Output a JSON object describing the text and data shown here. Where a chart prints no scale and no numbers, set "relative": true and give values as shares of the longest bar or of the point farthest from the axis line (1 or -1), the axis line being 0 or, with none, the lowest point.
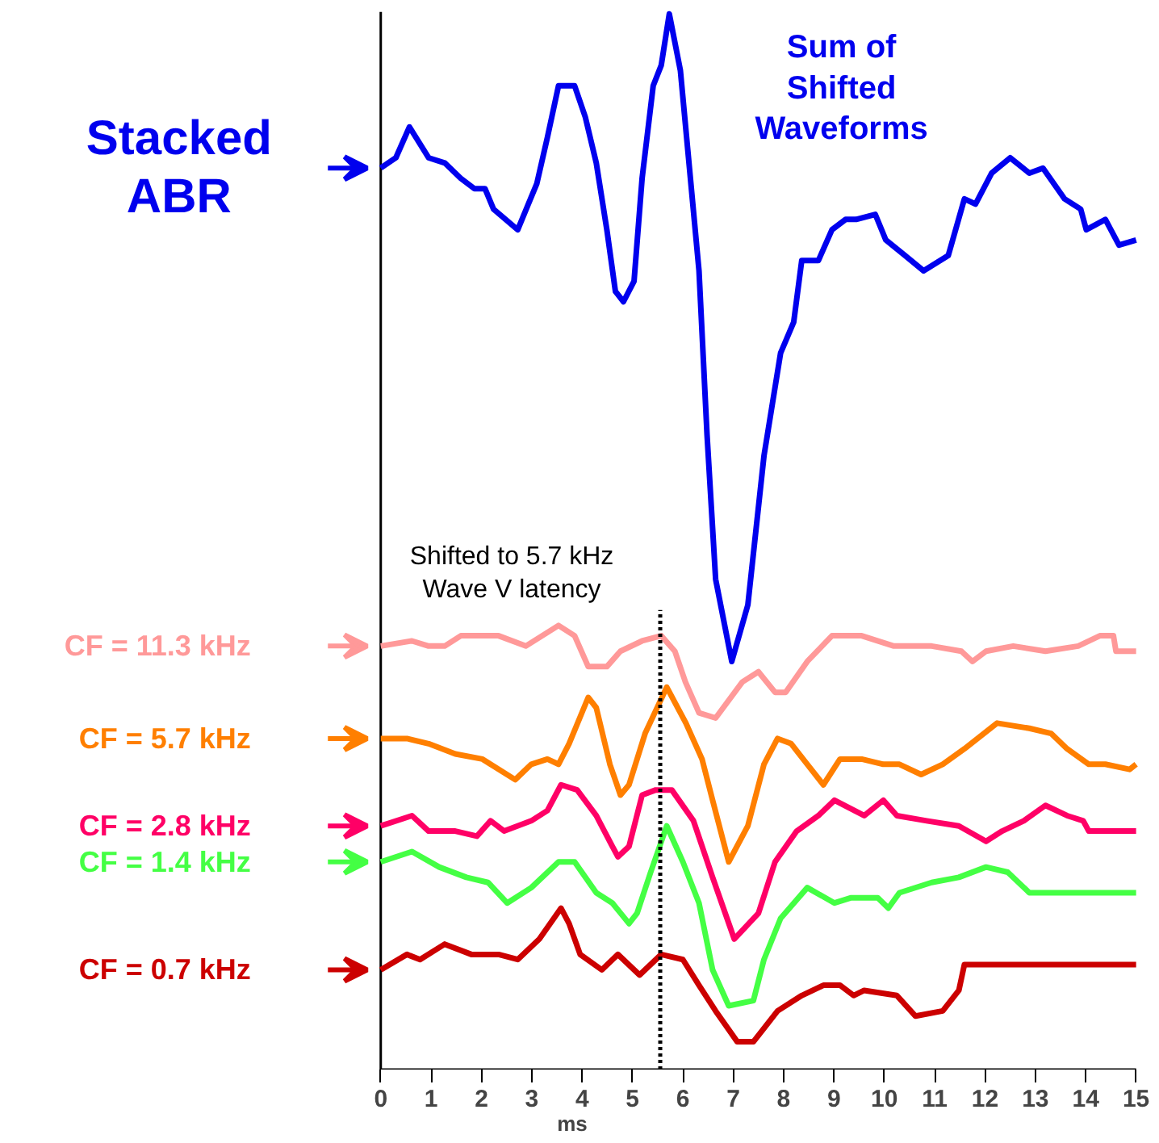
{
  "chart_data": {
    "type": "line",
    "relative": true,
    "xlabel": "ms",
    "xlim": [
      0,
      15
    ],
    "xticks": [
      0,
      1,
      2,
      3,
      4,
      5,
      6,
      7,
      8,
      9,
      10,
      11,
      12,
      13,
      14,
      15
    ],
    "grid": false,
    "legend": "left",
    "series": [
      {
        "name": "Stacked\nABR",
        "color": "#0000ee",
        "x": [
          0,
          0.3,
          0.57,
          0.95,
          1.27,
          1.59,
          1.86,
          2.07,
          2.24,
          2.72,
          3.1,
          3.31,
          3.53,
          3.85,
          4.06,
          4.28,
          4.49,
          4.66,
          4.82,
          5.03,
          5.19,
          5.41,
          5.57,
          5.73,
          5.95,
          6.32,
          6.48,
          6.65,
          6.97,
          7.29,
          7.61,
          7.94,
          8.2,
          8.36,
          8.69,
          8.96,
          9.23,
          9.44,
          9.82,
          10.03,
          10.41,
          10.78,
          11.27,
          11.59,
          11.81,
          12.13,
          12.5,
          12.88,
          13.15,
          13.58,
          13.9,
          14.01,
          14.39,
          14.66,
          15
        ],
        "values": [
          0.85,
          0.86,
          0.89,
          0.86,
          0.855,
          0.84,
          0.83,
          0.83,
          0.81,
          0.79,
          0.835,
          0.88,
          0.93,
          0.93,
          0.9,
          0.855,
          0.79,
          0.73,
          0.72,
          0.74,
          0.84,
          0.93,
          0.95,
          1.0,
          0.945,
          0.75,
          0.59,
          0.45,
          0.37,
          0.425,
          0.57,
          0.67,
          0.7,
          0.76,
          0.76,
          0.79,
          0.8,
          0.8,
          0.805,
          0.78,
          0.765,
          0.75,
          0.765,
          0.82,
          0.815,
          0.845,
          0.86,
          0.845,
          0.85,
          0.82,
          0.81,
          0.79,
          0.8,
          0.775,
          0.78
        ]
      },
      {
        "name": "CF = 11.3 kHz",
        "color": "#ff9999",
        "x": [
          0,
          0.62,
          0.95,
          1.27,
          1.59,
          2.34,
          2.88,
          3.53,
          3.85,
          4.12,
          4.49,
          4.76,
          5.19,
          5.57,
          5.84,
          6.05,
          6.32,
          6.65,
          7.18,
          7.5,
          7.83,
          8.04,
          8.47,
          8.96,
          9.55,
          10.19,
          10.94,
          11.53,
          11.75,
          12.02,
          12.56,
          13.2,
          13.85,
          14.28,
          14.55,
          14.6,
          15
        ],
        "values": [
          0.385,
          0.39,
          0.385,
          0.385,
          0.395,
          0.395,
          0.385,
          0.405,
          0.395,
          0.365,
          0.365,
          0.38,
          0.39,
          0.395,
          0.38,
          0.35,
          0.32,
          0.315,
          0.35,
          0.36,
          0.34,
          0.34,
          0.37,
          0.395,
          0.395,
          0.385,
          0.385,
          0.38,
          0.37,
          0.38,
          0.385,
          0.38,
          0.385,
          0.395,
          0.395,
          0.38,
          0.38
        ]
      },
      {
        "name": "CF = 5.7 kHz",
        "color": "#ff7f00",
        "x": [
          0,
          0.52,
          0.95,
          1.48,
          2.02,
          2.67,
          2.99,
          3.31,
          3.53,
          3.74,
          4.12,
          4.28,
          4.55,
          4.76,
          4.93,
          5.25,
          5.68,
          6.06,
          6.38,
          6.59,
          6.91,
          7.29,
          7.61,
          7.88,
          8.15,
          8.47,
          8.79,
          9.12,
          9.55,
          9.98,
          10.3,
          10.73,
          11.16,
          11.59,
          12.24,
          12.88,
          13.31,
          13.63,
          14.06,
          14.39,
          14.87,
          15
        ],
        "values": [
          0.295,
          0.295,
          0.29,
          0.28,
          0.275,
          0.255,
          0.27,
          0.275,
          0.27,
          0.29,
          0.335,
          0.325,
          0.27,
          0.24,
          0.25,
          0.3,
          0.345,
          0.31,
          0.275,
          0.235,
          0.175,
          0.21,
          0.27,
          0.295,
          0.29,
          0.27,
          0.25,
          0.275,
          0.275,
          0.27,
          0.27,
          0.26,
          0.27,
          0.285,
          0.31,
          0.305,
          0.3,
          0.285,
          0.27,
          0.27,
          0.265,
          0.27
        ]
      },
      {
        "name": "CF = 2.8 kHz",
        "color": "#ff0066",
        "x": [
          0,
          0.62,
          0.95,
          1.48,
          1.91,
          2.18,
          2.45,
          2.99,
          3.31,
          3.58,
          3.9,
          4.28,
          4.6,
          4.71,
          4.93,
          5.19,
          5.46,
          5.78,
          6.21,
          6.59,
          7.02,
          7.5,
          7.83,
          8.26,
          8.69,
          9.01,
          9.6,
          9.98,
          10.25,
          10.84,
          11.48,
          12.02,
          12.34,
          12.77,
          13.2,
          13.63,
          13.95,
          14.06,
          15
        ],
        "values": [
          0.21,
          0.22,
          0.205,
          0.205,
          0.2,
          0.215,
          0.205,
          0.215,
          0.225,
          0.25,
          0.245,
          0.22,
          0.19,
          0.18,
          0.19,
          0.24,
          0.245,
          0.245,
          0.215,
          0.16,
          0.1,
          0.125,
          0.175,
          0.205,
          0.22,
          0.235,
          0.22,
          0.235,
          0.22,
          0.215,
          0.21,
          0.195,
          0.205,
          0.215,
          0.23,
          0.22,
          0.215,
          0.205,
          0.205
        ]
      },
      {
        "name": "CF = 1.4 kHz",
        "color": "#44ff44",
        "x": [
          0,
          0.62,
          1.16,
          1.7,
          2.13,
          2.51,
          2.99,
          3.53,
          3.85,
          4.28,
          4.6,
          4.93,
          5.09,
          5.36,
          5.68,
          6.0,
          6.32,
          6.59,
          6.91,
          7.4,
          7.61,
          7.94,
          8.47,
          9.01,
          9.33,
          9.87,
          10.08,
          10.3,
          10.94,
          11.48,
          12.02,
          12.45,
          12.88,
          15
        ],
        "values": [
          0.175,
          0.185,
          0.17,
          0.16,
          0.155,
          0.135,
          0.15,
          0.175,
          0.175,
          0.145,
          0.135,
          0.115,
          0.125,
          0.165,
          0.21,
          0.175,
          0.135,
          0.07,
          0.035,
          0.04,
          0.08,
          0.12,
          0.15,
          0.135,
          0.14,
          0.14,
          0.13,
          0.145,
          0.155,
          0.16,
          0.17,
          0.165,
          0.145,
          0.145
        ]
      },
      {
        "name": "CF = 0.7 kHz",
        "color": "#cc0000",
        "x": [
          0,
          0.52,
          0.78,
          1.27,
          1.8,
          2.34,
          2.72,
          3.15,
          3.58,
          3.74,
          3.96,
          4.39,
          4.71,
          5.14,
          5.57,
          6.0,
          6.32,
          6.65,
          7.08,
          7.4,
          7.88,
          8.36,
          8.79,
          9.12,
          9.39,
          9.6,
          10.25,
          10.62,
          11.16,
          11.48,
          11.59,
          15
        ],
        "values": [
          0.07,
          0.085,
          0.08,
          0.095,
          0.085,
          0.085,
          0.08,
          0.1,
          0.13,
          0.115,
          0.085,
          0.07,
          0.085,
          0.065,
          0.085,
          0.08,
          0.055,
          0.03,
          0.0,
          0.0,
          0.03,
          0.045,
          0.055,
          0.055,
          0.045,
          0.05,
          0.045,
          0.025,
          0.03,
          0.05,
          0.075,
          0.075
        ]
      }
    ],
    "ref_lines": [
      {
        "axis": "x",
        "value": 5.55,
        "color": "#000000",
        "line_style": "dotted"
      }
    ],
    "annotations": [
      "Sum of\nShifted\nWaveforms",
      {
        "text": "Shifted to 5.7 kHz\nWave V latency",
        "x": 5.55,
        "y": 0.42
      }
    ]
  }
}
